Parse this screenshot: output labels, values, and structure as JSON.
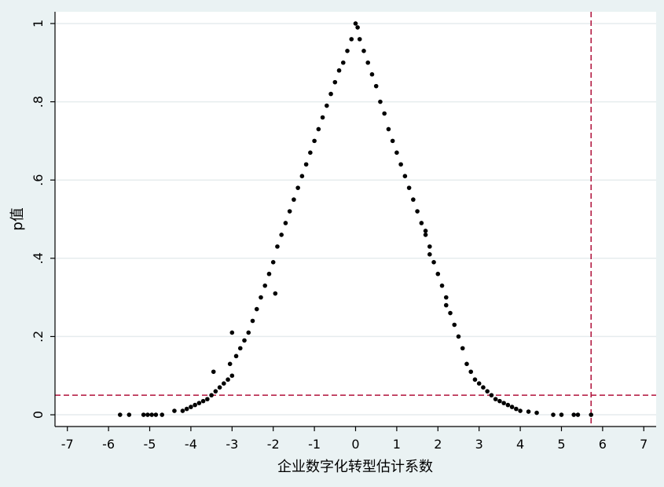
{
  "chart_data": {
    "type": "scatter",
    "title": "",
    "xlabel": "企业数字化转型估计系数",
    "ylabel": "p值",
    "xlim": [
      -7.3,
      7.3
    ],
    "ylim": [
      -0.03,
      1.03
    ],
    "xticks": [
      -7,
      -6,
      -5,
      -4,
      -3,
      -2,
      -1,
      0,
      1,
      2,
      3,
      4,
      5,
      6,
      7
    ],
    "yticks": [
      0,
      0.2,
      0.4,
      0.6,
      0.8,
      1
    ],
    "ytick_labels": [
      "0",
      ".2",
      ".4",
      ".6",
      ".8",
      "1"
    ],
    "grid": true,
    "reference_lines": [
      {
        "orientation": "horizontal",
        "value": 0.05,
        "color": "#b0103a",
        "style": "dashed"
      },
      {
        "orientation": "vertical",
        "value": 5.72,
        "color": "#b0103a",
        "style": "dashed"
      }
    ],
    "series": [
      {
        "color": "#000000",
        "points": [
          [
            -5.72,
            0.0
          ],
          [
            -5.5,
            0.0
          ],
          [
            -5.15,
            0.0
          ],
          [
            -5.05,
            0.0
          ],
          [
            -4.95,
            0.0
          ],
          [
            -4.85,
            0.0
          ],
          [
            -4.7,
            0.0
          ],
          [
            -4.4,
            0.01
          ],
          [
            -4.2,
            0.01
          ],
          [
            -4.1,
            0.015
          ],
          [
            -4.0,
            0.02
          ],
          [
            -3.9,
            0.025
          ],
          [
            -3.8,
            0.03
          ],
          [
            -3.7,
            0.035
          ],
          [
            -3.6,
            0.04
          ],
          [
            -3.5,
            0.05
          ],
          [
            -3.4,
            0.06
          ],
          [
            -3.3,
            0.07
          ],
          [
            -3.2,
            0.08
          ],
          [
            -3.1,
            0.09
          ],
          [
            -3.0,
            0.1
          ],
          [
            -3.45,
            0.11
          ],
          [
            -3.05,
            0.13
          ],
          [
            -2.9,
            0.15
          ],
          [
            -2.8,
            0.17
          ],
          [
            -2.7,
            0.19
          ],
          [
            -2.6,
            0.21
          ],
          [
            -3.0,
            0.21
          ],
          [
            -2.5,
            0.24
          ],
          [
            -2.4,
            0.27
          ],
          [
            -2.3,
            0.3
          ],
          [
            -2.2,
            0.33
          ],
          [
            -2.1,
            0.36
          ],
          [
            -2.0,
            0.39
          ],
          [
            -1.95,
            0.31
          ],
          [
            -1.9,
            0.43
          ],
          [
            -1.8,
            0.46
          ],
          [
            -1.7,
            0.49
          ],
          [
            -1.6,
            0.52
          ],
          [
            -1.5,
            0.55
          ],
          [
            -1.4,
            0.58
          ],
          [
            -1.3,
            0.61
          ],
          [
            -1.2,
            0.64
          ],
          [
            -1.1,
            0.67
          ],
          [
            -1.0,
            0.7
          ],
          [
            -0.9,
            0.73
          ],
          [
            -0.8,
            0.76
          ],
          [
            -0.7,
            0.79
          ],
          [
            -0.6,
            0.82
          ],
          [
            -0.5,
            0.85
          ],
          [
            -0.4,
            0.88
          ],
          [
            -0.3,
            0.9
          ],
          [
            -0.2,
            0.93
          ],
          [
            -0.1,
            0.96
          ],
          [
            0.0,
            1.0
          ],
          [
            0.05,
            0.99
          ],
          [
            0.1,
            0.96
          ],
          [
            0.2,
            0.93
          ],
          [
            0.3,
            0.9
          ],
          [
            0.4,
            0.87
          ],
          [
            0.5,
            0.84
          ],
          [
            0.6,
            0.8
          ],
          [
            0.7,
            0.77
          ],
          [
            0.8,
            0.73
          ],
          [
            0.9,
            0.7
          ],
          [
            1.0,
            0.67
          ],
          [
            1.1,
            0.64
          ],
          [
            1.2,
            0.61
          ],
          [
            1.3,
            0.58
          ],
          [
            1.4,
            0.55
          ],
          [
            1.5,
            0.52
          ],
          [
            1.6,
            0.49
          ],
          [
            1.7,
            0.46
          ],
          [
            1.7,
            0.47
          ],
          [
            1.8,
            0.43
          ],
          [
            1.8,
            0.41
          ],
          [
            1.9,
            0.39
          ],
          [
            2.0,
            0.36
          ],
          [
            2.1,
            0.33
          ],
          [
            2.2,
            0.3
          ],
          [
            2.2,
            0.28
          ],
          [
            2.3,
            0.26
          ],
          [
            2.4,
            0.23
          ],
          [
            2.5,
            0.2
          ],
          [
            2.6,
            0.17
          ],
          [
            2.7,
            0.13
          ],
          [
            2.8,
            0.11
          ],
          [
            2.9,
            0.09
          ],
          [
            3.0,
            0.08
          ],
          [
            3.1,
            0.07
          ],
          [
            3.2,
            0.06
          ],
          [
            3.3,
            0.05
          ],
          [
            3.4,
            0.04
          ],
          [
            3.5,
            0.035
          ],
          [
            3.6,
            0.03
          ],
          [
            3.7,
            0.025
          ],
          [
            3.8,
            0.02
          ],
          [
            3.9,
            0.015
          ],
          [
            4.0,
            0.01
          ],
          [
            4.2,
            0.008
          ],
          [
            4.4,
            0.005
          ],
          [
            4.8,
            0.0
          ],
          [
            5.0,
            0.0
          ],
          [
            5.3,
            0.0
          ],
          [
            5.4,
            0.0
          ],
          [
            5.72,
            0.0
          ]
        ]
      }
    ]
  }
}
